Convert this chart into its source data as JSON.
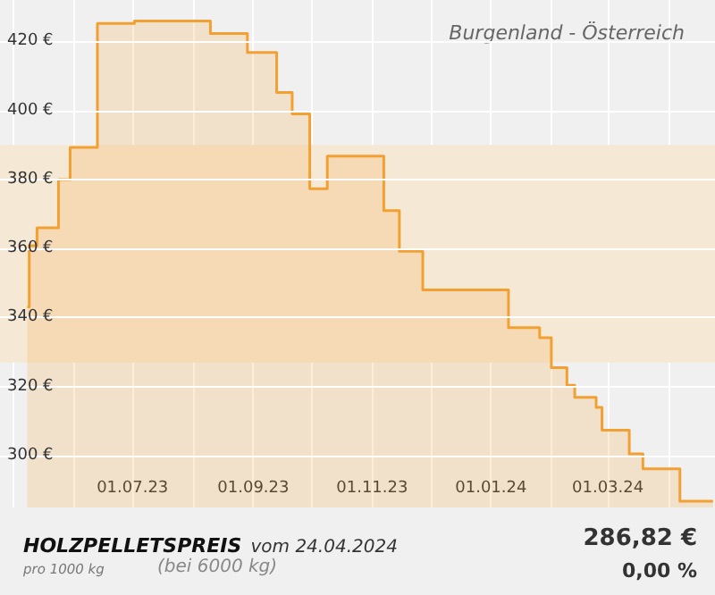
{
  "chart_data": {
    "type": "step",
    "title": "HOLZPELLETSPREIS",
    "subtitle": "Burgenland - Österreich",
    "annotations": [
      "vom 24.04.2024",
      "pro 1000 kg",
      "(bei 6000 kg)",
      "286,82 €",
      "0,00 %"
    ],
    "x": [
      "2023-05-08",
      "2023-05-09",
      "2023-05-13",
      "2023-05-24",
      "2023-05-30",
      "2023-06-13",
      "2023-07-02",
      "2023-08-10",
      "2023-08-29",
      "2023-09-13",
      "2023-09-21",
      "2023-09-30",
      "2023-10-09",
      "2023-11-07",
      "2023-11-15",
      "2023-11-27",
      "2024-01-10",
      "2024-01-26",
      "2024-02-01",
      "2024-02-09",
      "2024-02-13",
      "2024-02-24",
      "2024-02-27",
      "2024-03-12",
      "2024-03-19",
      "2024-04-07",
      "2024-04-24"
    ],
    "values": [
      343.1,
      360.8,
      366,
      380,
      389.3,
      425.2,
      425.9,
      422.3,
      416.8,
      405.2,
      399,
      377.3,
      386.8,
      371,
      359.2,
      348,
      337.1,
      334.2,
      325.5,
      320.4,
      316.9,
      314,
      307.4,
      300.5,
      296.2,
      286.8,
      286.8
    ],
    "color": "#f3a033",
    "marker": "none",
    "grid": true,
    "xlim": [
      "2023-04-24",
      "2024-04-25"
    ],
    "xticks": [
      {
        "value": "2023-05-01",
        "label": null
      },
      {
        "value": "2023-06-01",
        "label": null
      },
      {
        "value": "2023-07-01",
        "label": "01.07.23"
      },
      {
        "value": "2023-08-01",
        "label": null
      },
      {
        "value": "2023-09-01",
        "label": "01.09.23"
      },
      {
        "value": "2023-10-01",
        "label": null
      },
      {
        "value": "2023-11-01",
        "label": "01.11.23"
      },
      {
        "value": "2023-12-01",
        "label": null
      },
      {
        "value": "2024-01-01",
        "label": "01.01.24"
      },
      {
        "value": "2024-02-01",
        "label": null
      },
      {
        "value": "2024-03-01",
        "label": "01.03.24"
      },
      {
        "value": "2024-04-01",
        "label": null
      }
    ],
    "ylim": [
      285,
      432
    ],
    "yticks": [
      {
        "value": 300,
        "label": "300 €"
      },
      {
        "value": 320,
        "label": "320 €"
      },
      {
        "value": 340,
        "label": "340 €"
      },
      {
        "value": 360,
        "label": "360 €"
      },
      {
        "value": 380,
        "label": "380 €"
      },
      {
        "value": 400,
        "label": "400 €"
      },
      {
        "value": 420,
        "label": "420 €"
      }
    ],
    "bands": [
      {
        "axis": "y",
        "from": 327,
        "to": 390,
        "color": "#f5e9d6"
      }
    ]
  }
}
